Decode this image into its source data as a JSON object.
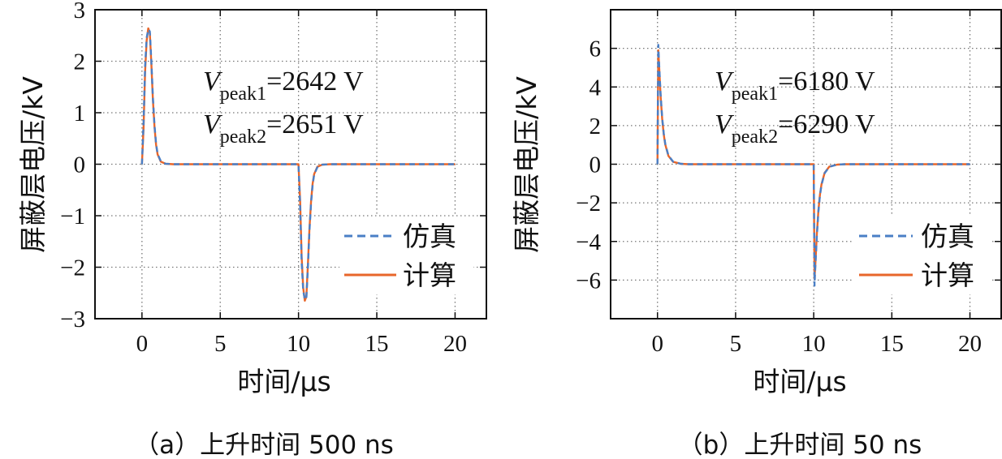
{
  "colors": {
    "sim": "#4a7fc6",
    "calc": "#e8662a",
    "grid": "#777777",
    "axis": "#111111"
  },
  "chart_data": [
    {
      "type": "line",
      "xlabel": "时间/μs",
      "ylabel": "屏蔽层电压/kV",
      "xlim": [
        -3,
        22
      ],
      "ylim": [
        -3,
        3
      ],
      "xticks": [
        0,
        5,
        10,
        15,
        20
      ],
      "yticks": [
        3,
        2,
        1,
        0,
        -1,
        -2,
        -3
      ],
      "grid": true,
      "legend_position": "right",
      "annotations": [
        {
          "main": "V",
          "sub": "peak1",
          "rest": "=2642 V"
        },
        {
          "main": "V",
          "sub": "peak2",
          "rest": "=2651 V"
        }
      ],
      "series": [
        {
          "name": "仿真",
          "style": "dashed",
          "color": "#4a7fc6",
          "x": [
            0,
            0.1,
            0.2,
            0.3,
            0.4,
            0.5,
            0.6,
            0.7,
            0.8,
            0.9,
            1.0,
            1.2,
            1.5,
            2.0,
            5,
            10,
            10.1,
            10.2,
            10.3,
            10.4,
            10.5,
            10.6,
            10.7,
            10.8,
            10.9,
            11.0,
            11.2,
            11.5,
            12.0,
            15,
            20
          ],
          "y": [
            0,
            0.8,
            1.9,
            2.45,
            2.62,
            2.58,
            2.0,
            1.3,
            0.75,
            0.4,
            0.2,
            0.06,
            0.01,
            0,
            0,
            0,
            -0.8,
            -1.9,
            -2.45,
            -2.63,
            -2.6,
            -2.0,
            -1.3,
            -0.75,
            -0.4,
            -0.2,
            -0.06,
            -0.01,
            0,
            0,
            0
          ]
        },
        {
          "name": "计算",
          "style": "solid",
          "color": "#e8662a",
          "x": [
            0,
            0.1,
            0.2,
            0.3,
            0.4,
            0.5,
            0.6,
            0.7,
            0.8,
            0.9,
            1.0,
            1.2,
            1.5,
            2.0,
            5,
            10,
            10.1,
            10.2,
            10.3,
            10.4,
            10.5,
            10.6,
            10.7,
            10.8,
            10.9,
            11.0,
            11.2,
            11.5,
            12.0,
            15,
            20
          ],
          "y": [
            0,
            0.7,
            1.8,
            2.4,
            2.64,
            2.55,
            1.95,
            1.25,
            0.72,
            0.38,
            0.19,
            0.05,
            0.01,
            0,
            0,
            0,
            -0.7,
            -1.8,
            -2.4,
            -2.65,
            -2.57,
            -1.95,
            -1.25,
            -0.72,
            -0.38,
            -0.19,
            -0.05,
            -0.01,
            0,
            0,
            0
          ]
        }
      ]
    },
    {
      "type": "line",
      "xlabel": "时间/μs",
      "ylabel": "屏蔽层电压/kV",
      "xlim": [
        -3,
        22
      ],
      "ylim": [
        -8,
        8
      ],
      "xticks": [
        0,
        5,
        10,
        15,
        20
      ],
      "yticks": [
        6,
        4,
        2,
        0,
        -2,
        -4,
        -6
      ],
      "grid": true,
      "legend_position": "right",
      "annotations": [
        {
          "main": "V",
          "sub": "peak1",
          "rest": "=6180 V"
        },
        {
          "main": "V",
          "sub": "peak2",
          "rest": "=6290 V"
        }
      ],
      "series": [
        {
          "name": "仿真",
          "style": "dashed",
          "color": "#4a7fc6",
          "x": [
            0,
            0.05,
            0.1,
            0.2,
            0.3,
            0.4,
            0.5,
            0.7,
            1.0,
            1.5,
            2.0,
            5,
            10,
            10.05,
            10.1,
            10.2,
            10.3,
            10.4,
            10.5,
            10.7,
            11.0,
            11.5,
            12.0,
            15,
            20
          ],
          "y": [
            0,
            6.18,
            5.3,
            3.6,
            2.4,
            1.6,
            1.05,
            0.45,
            0.13,
            0.02,
            0,
            0,
            0,
            -6.29,
            -5.4,
            -3.7,
            -2.45,
            -1.62,
            -1.07,
            -0.46,
            -0.13,
            -0.02,
            0,
            0,
            0
          ]
        },
        {
          "name": "计算",
          "style": "solid",
          "color": "#e8662a",
          "x": [
            0,
            0.05,
            0.1,
            0.2,
            0.3,
            0.4,
            0.5,
            0.7,
            1.0,
            1.5,
            2.0,
            5,
            10,
            10.05,
            10.1,
            10.2,
            10.3,
            10.4,
            10.5,
            10.7,
            11.0,
            11.5,
            12.0,
            15,
            20
          ],
          "y": [
            0,
            5.9,
            5.2,
            3.5,
            2.35,
            1.55,
            1.02,
            0.43,
            0.12,
            0.02,
            0,
            0,
            0,
            -5.9,
            -5.3,
            -3.6,
            -2.4,
            -1.58,
            -1.04,
            -0.44,
            -0.12,
            -0.02,
            0,
            0,
            0
          ]
        }
      ]
    }
  ],
  "captions": [
    "（a）上升时间 500 ns",
    "（b）上升时间 50 ns"
  ]
}
